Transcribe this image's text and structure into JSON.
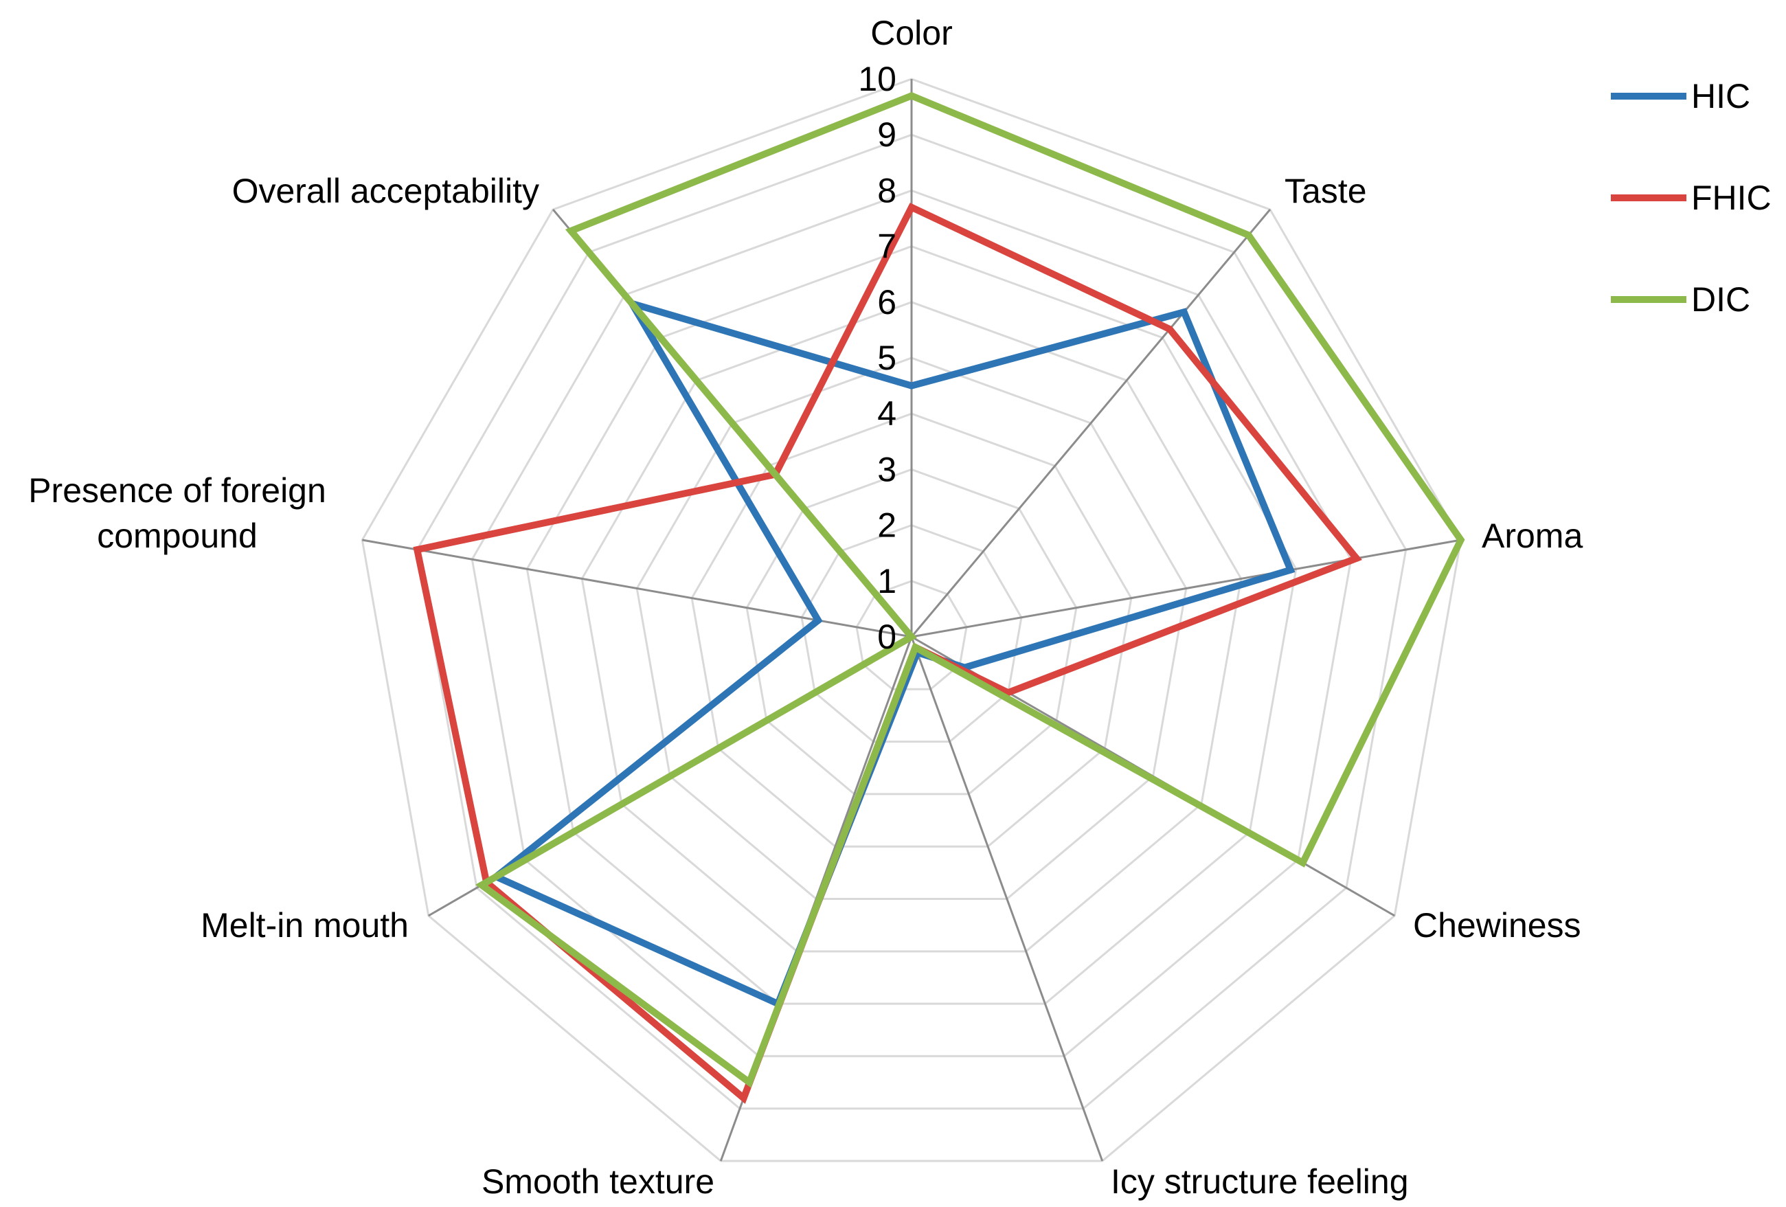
{
  "chart_data": {
    "type": "radar",
    "axes": [
      "Color",
      "Taste",
      "Aroma",
      "Chewiness",
      "Icy structure feeling",
      "Smooth texture",
      "Melt-in mouth",
      "Presence of foreign compound",
      "Overall acceptability"
    ],
    "axis_label_lines": [
      [
        "Color"
      ],
      [
        "Taste"
      ],
      [
        "Aroma"
      ],
      [
        "Chewiness"
      ],
      [
        "Icy structure feeling"
      ],
      [
        "Smooth texture"
      ],
      [
        "Melt-in mouth"
      ],
      [
        "Presence of foreign",
        "compound"
      ],
      [
        "Overall acceptability"
      ]
    ],
    "ticks": [
      0,
      1,
      2,
      3,
      4,
      5,
      6,
      7,
      8,
      9,
      10
    ],
    "range": [
      0,
      10
    ],
    "series": [
      {
        "name": "HIC",
        "color": "#2E75B6",
        "values": [
          4.5,
          7.6,
          6.9,
          1.1,
          0.3,
          7.0,
          8.6,
          1.7,
          7.8
        ]
      },
      {
        "name": "FHIC",
        "color": "#D9443F",
        "values": [
          7.7,
          7.2,
          8.1,
          2.0,
          0.2,
          8.8,
          8.8,
          9.0,
          3.8
        ]
      },
      {
        "name": "DIC",
        "color": "#8DB84A",
        "values": [
          9.7,
          9.4,
          10.0,
          8.1,
          0.2,
          8.5,
          8.9,
          0.0,
          9.5
        ]
      }
    ],
    "grid": true,
    "legend_position": "top-right"
  }
}
